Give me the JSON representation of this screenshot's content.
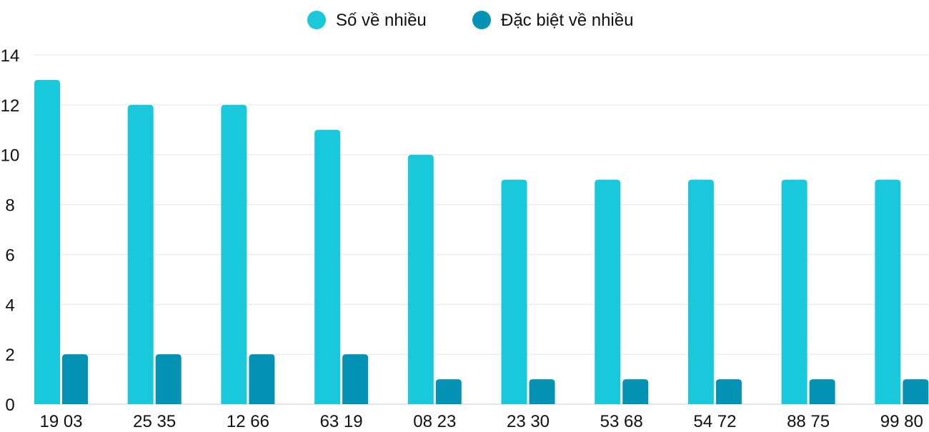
{
  "chart_data": {
    "type": "bar",
    "title": "",
    "xlabel": "",
    "ylabel": "",
    "ylim": [
      0,
      14
    ],
    "yticks": [
      0,
      2,
      4,
      6,
      8,
      10,
      12,
      14
    ],
    "grid": true,
    "legend_position": "top",
    "categories": [
      "19 03",
      "25 35",
      "12 66",
      "63 19",
      "08 23",
      "23 30",
      "53 68",
      "54 72",
      "88 75",
      "99 80"
    ],
    "series": [
      {
        "name": "Số về nhiều",
        "color": "#1AC8DB",
        "values": [
          13,
          12,
          12,
          11,
          10,
          9,
          9,
          9,
          9,
          9
        ]
      },
      {
        "name": "Đặc biệt về nhiều",
        "color": "#0492B5",
        "values": [
          2,
          2,
          2,
          2,
          1,
          1,
          1,
          1,
          1,
          1
        ]
      }
    ]
  }
}
